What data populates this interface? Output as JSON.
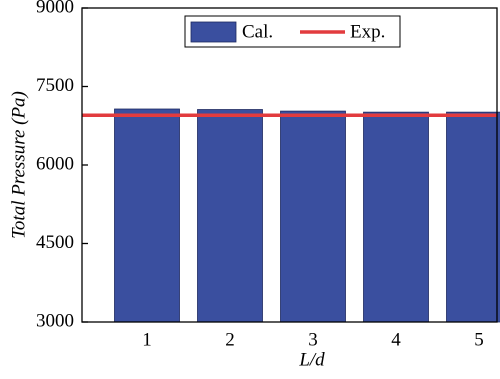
{
  "chart_data": {
    "type": "bar",
    "x_label": "L/d",
    "y_label": "Total Pressure (Pa)",
    "categories": [
      "1",
      "2",
      "3",
      "4",
      "5"
    ],
    "series": [
      {
        "name": "Cal.",
        "color": "#3a4f9f",
        "values": [
          7070,
          7060,
          7030,
          7010,
          7010
        ]
      }
    ],
    "reference_line": {
      "name": "Exp.",
      "value": 6950,
      "color": "#e23b3e"
    },
    "ylim": [
      3000,
      9000
    ],
    "yticks": [
      3000,
      4500,
      6000,
      7500,
      9000
    ]
  }
}
